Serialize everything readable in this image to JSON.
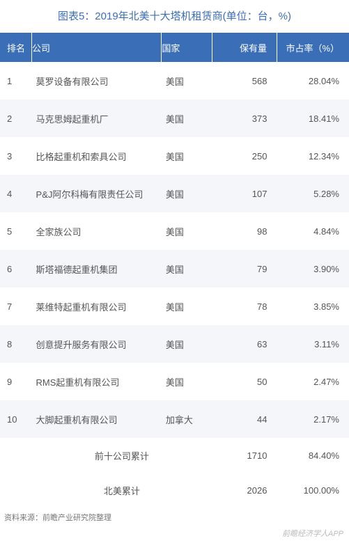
{
  "title": "图表5：2019年北美十大塔机租赁商(单位：台，%)",
  "columns": {
    "rank": "排名",
    "company": "公司",
    "country": "国家",
    "quantity": "保有量",
    "share": "市占率（%）"
  },
  "col_widths": {
    "rank": 44,
    "company": 180,
    "country": 70,
    "quantity": 90,
    "share": 100
  },
  "header_bg": "#3a6fb7",
  "header_fg": "#ffffff",
  "row_alt_bg": "#f4f6f9",
  "row_bg": "#ffffff",
  "text_color": "#555555",
  "title_color": "#3a6fb7",
  "font_size_title": 15,
  "font_size_body": 13,
  "rows": [
    {
      "rank": "1",
      "company": "莫罗设备有限公司",
      "country": "美国",
      "quantity": "568",
      "share": "28.04%"
    },
    {
      "rank": "2",
      "company": "马克思姆起重机厂",
      "country": "美国",
      "quantity": "373",
      "share": "18.41%"
    },
    {
      "rank": "3",
      "company": "比格起重机和索具公司",
      "country": "美国",
      "quantity": "250",
      "share": "12.34%"
    },
    {
      "rank": "4",
      "company": "P&J阿尔科梅有限责任公司",
      "country": "美国",
      "quantity": "107",
      "share": "5.28%"
    },
    {
      "rank": "5",
      "company": "全家族公司",
      "country": "美国",
      "quantity": "98",
      "share": "4.84%"
    },
    {
      "rank": "6",
      "company": "斯塔福德起重机集团",
      "country": "美国",
      "quantity": "79",
      "share": "3.90%"
    },
    {
      "rank": "7",
      "company": "莱维特起重机有限公司",
      "country": "美国",
      "quantity": "78",
      "share": "3.85%"
    },
    {
      "rank": "8",
      "company": "创意提升服务有限公司",
      "country": "美国",
      "quantity": "63",
      "share": "3.11%"
    },
    {
      "rank": "9",
      "company": "RMS起重机有限公司",
      "country": "美国",
      "quantity": "50",
      "share": "2.47%"
    },
    {
      "rank": "10",
      "company": "大脚起重机有限公司",
      "country": "加拿大",
      "quantity": "44",
      "share": "2.17%"
    }
  ],
  "summaries": [
    {
      "label": "前十公司累计",
      "quantity": "1710",
      "share": "84.40%"
    },
    {
      "label": "北美累计",
      "quantity": "2026",
      "share": "100.00%"
    }
  ],
  "source": "资料来源：前瞻产业研究院整理",
  "watermark": "前瞻经济学人APP"
}
